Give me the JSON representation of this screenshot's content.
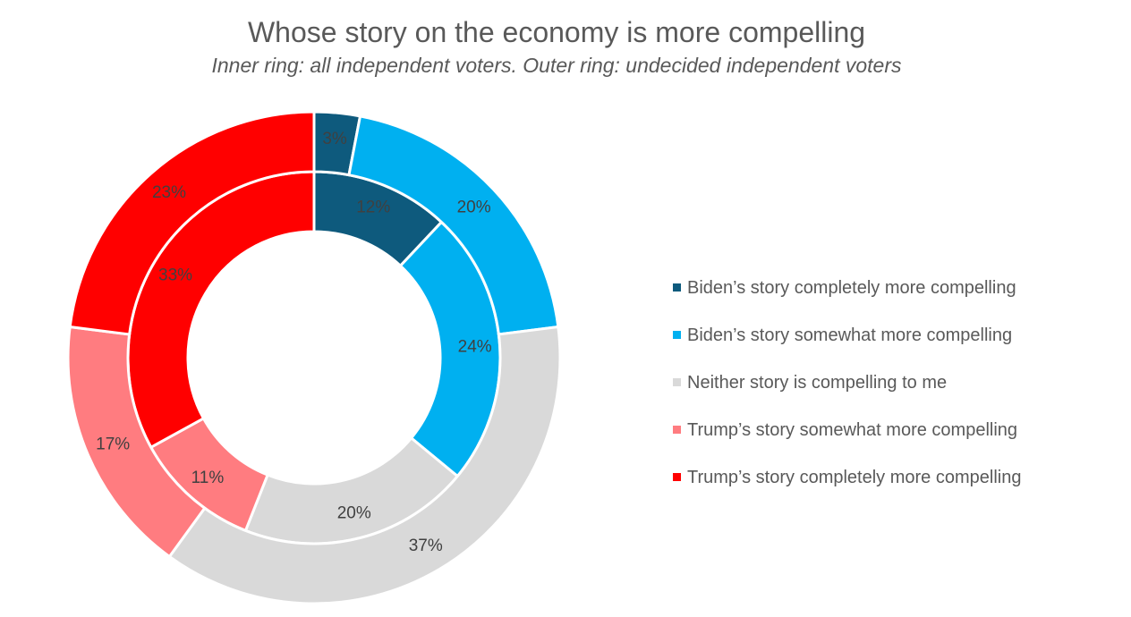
{
  "chart_data": {
    "type": "pie",
    "title": "Whose story on the economy is more compelling",
    "subtitle": "Inner ring: all independent voters. Outer ring: undecided independent voters",
    "categories": [
      "Biden’s story completely more compelling",
      "Biden’s story somewhat more compelling",
      "Neither story is compelling to me",
      "Trump’s story somewhat more compelling",
      "Trump’s story completely more compelling"
    ],
    "colors": [
      "#0e5a7d",
      "#00b0f0",
      "#d9d9d9",
      "#ff7c80",
      "#ff0000"
    ],
    "series": [
      {
        "ring": "inner",
        "values": [
          12,
          24,
          20,
          11,
          33
        ],
        "labels": [
          "12%",
          "24%",
          "20%",
          "11%",
          "33%"
        ]
      },
      {
        "ring": "outer",
        "values": [
          3,
          20,
          37,
          17,
          23
        ],
        "labels": [
          "3%",
          "20%",
          "37%",
          "17%",
          "23%"
        ]
      }
    ],
    "legend_position": "right"
  }
}
